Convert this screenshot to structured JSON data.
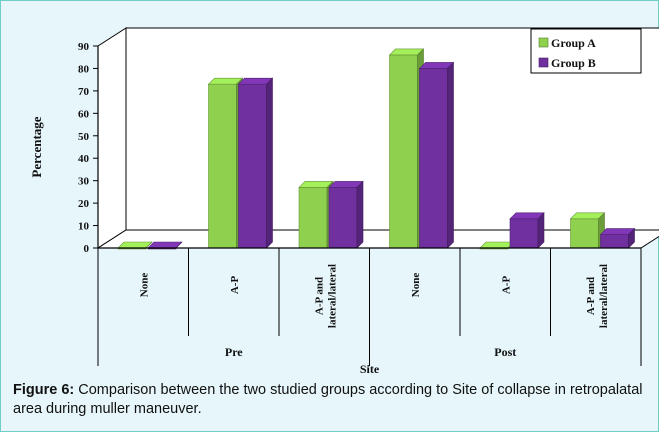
{
  "chart_data": {
    "type": "bar",
    "style": "3d-clustered",
    "groups": [
      {
        "label": "Pre",
        "categories": [
          "None",
          "A-P",
          "A-P and lateral/lateral"
        ]
      },
      {
        "label": "Post",
        "categories": [
          "None",
          "A-P",
          "A-P and lateral/lateral"
        ]
      }
    ],
    "series": [
      {
        "name": "Group A",
        "color": "#8fd14f",
        "values": [
          0,
          73,
          27,
          86,
          0,
          13
        ]
      },
      {
        "name": "Group B",
        "color": "#7030a0",
        "values": [
          0,
          73,
          27,
          80,
          13,
          6
        ]
      }
    ],
    "ylabel": "Percentage",
    "xlabel": "Site",
    "ylim": [
      0,
      90
    ],
    "yticks": [
      0,
      10,
      20,
      30,
      40,
      50,
      60,
      70,
      80,
      90
    ],
    "grid": false,
    "legend_position": "top-right"
  },
  "caption": {
    "prefix": "Figure 6:",
    "text": " Comparison between the two studied groups according to Site of collapse in retropalatal area during muller maneuver."
  }
}
